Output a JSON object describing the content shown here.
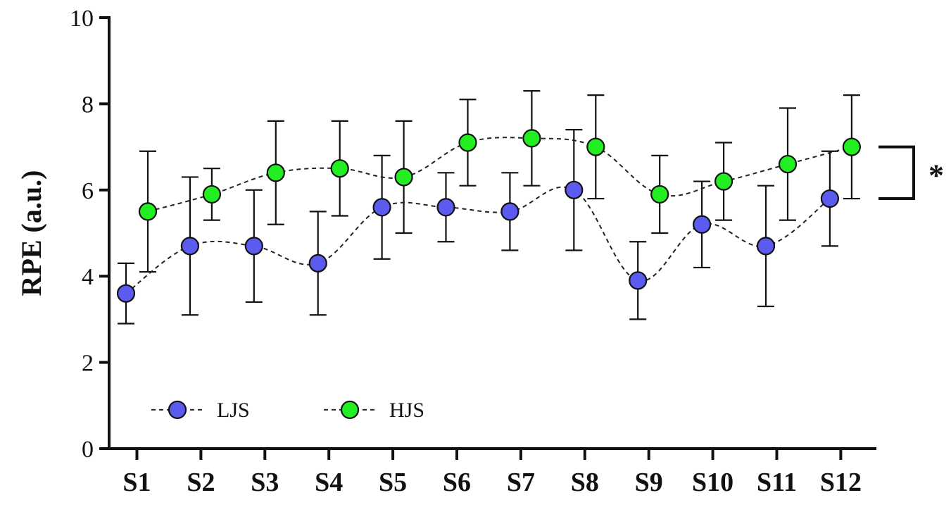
{
  "chart_data": {
    "type": "line",
    "title": "",
    "xlabel": "",
    "ylabel": "RPE (a.u.)",
    "ylim": [
      0,
      10
    ],
    "yticks": [
      0,
      2,
      4,
      6,
      8,
      10
    ],
    "categories": [
      "S1",
      "S2",
      "S3",
      "S4",
      "S5",
      "S6",
      "S7",
      "S8",
      "S9",
      "S10",
      "S11",
      "S12"
    ],
    "grid": false,
    "legend_position": "bottom-left",
    "line_style": "dashed",
    "series": [
      {
        "name": "LJS",
        "color": "#5b5bf0",
        "values": [
          3.6,
          4.7,
          4.7,
          4.3,
          5.6,
          5.6,
          5.5,
          6.0,
          3.9,
          5.2,
          4.7,
          5.8
        ],
        "error_low": [
          2.9,
          3.1,
          3.4,
          3.1,
          4.4,
          4.8,
          4.6,
          4.6,
          3.0,
          4.2,
          3.3,
          4.7
        ],
        "error_high": [
          4.3,
          6.3,
          6.0,
          5.5,
          6.8,
          6.4,
          6.4,
          7.4,
          4.8,
          6.2,
          6.1,
          6.9
        ]
      },
      {
        "name": "HJS",
        "color": "#22ee22",
        "values": [
          5.5,
          5.9,
          6.4,
          6.5,
          6.3,
          7.1,
          7.2,
          7.0,
          5.9,
          6.2,
          6.6,
          7.0
        ],
        "error_low": [
          4.1,
          5.3,
          5.2,
          5.4,
          5.0,
          6.1,
          6.1,
          5.8,
          5.0,
          5.3,
          5.3,
          5.8
        ],
        "error_high": [
          6.9,
          6.5,
          7.6,
          7.6,
          7.6,
          8.1,
          8.3,
          8.2,
          6.8,
          7.1,
          7.9,
          8.2
        ]
      }
    ],
    "annotations": [
      {
        "text": "*",
        "between_series": [
          "HJS",
          "LJS"
        ]
      }
    ]
  }
}
